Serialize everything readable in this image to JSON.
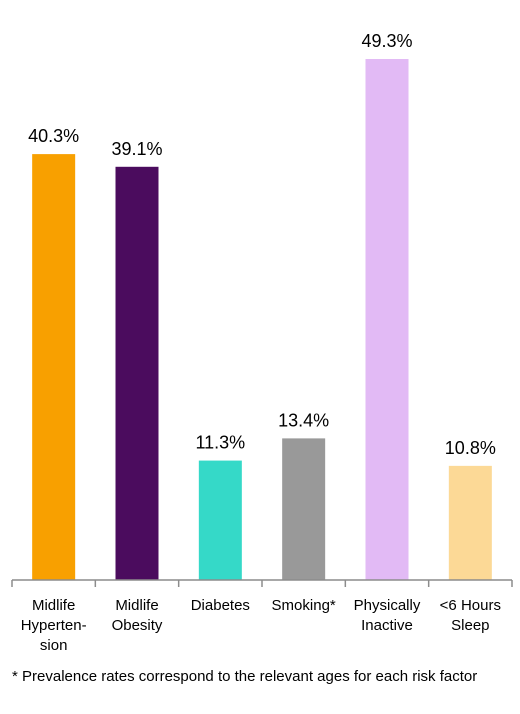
{
  "chart_data": {
    "type": "bar",
    "categories": [
      [
        "Midlife",
        "Hyperten-",
        "sion"
      ],
      [
        "Midlife",
        "Obesity"
      ],
      [
        "Diabetes"
      ],
      [
        "Smoking*"
      ],
      [
        "Physically",
        "Inactive"
      ],
      [
        "<6 Hours",
        "Sleep"
      ]
    ],
    "values": [
      40.3,
      39.1,
      11.3,
      13.4,
      49.3,
      10.8
    ],
    "value_labels": [
      "40.3%",
      "39.1%",
      "11.3%",
      "13.4%",
      "49.3%",
      "10.8%"
    ],
    "colors": [
      "#f8a000",
      "#4b0c5e",
      "#35d9c8",
      "#999999",
      "#e2baf5",
      "#fcd996"
    ],
    "ylim": [
      0,
      50
    ],
    "grid": false,
    "legend": "none",
    "footnote": "* Prevalence rates correspond to the relevant ages for each risk factor"
  }
}
